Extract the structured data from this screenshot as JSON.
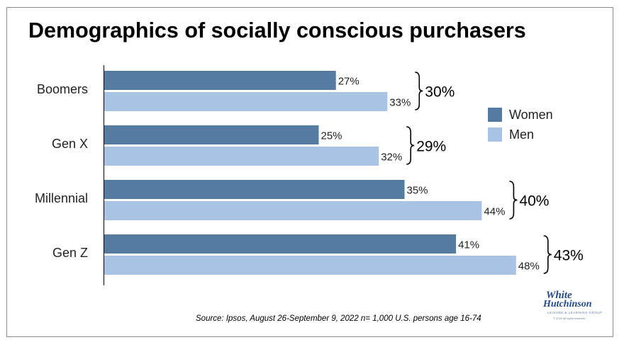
{
  "title": "Demographics of socially conscious purchasers",
  "source": "Source: Ipsos, August 26-September 9, 2022 n= 1,000 U.S. persons age 16-74",
  "logo": {
    "line1": "White",
    "line2": "Hutchinson",
    "line3": "LEISURE & LEARNING GROUP",
    "line4": "© 2022 all rights reserved"
  },
  "colors": {
    "women": "#557ba0",
    "men": "#a9c3e5"
  },
  "chart_data": {
    "type": "bar",
    "orientation": "horizontal",
    "categories": [
      "Boomers",
      "Gen X",
      "Millennial",
      "Gen Z"
    ],
    "series": [
      {
        "name": "Women",
        "values": [
          27,
          25,
          35,
          41
        ],
        "labels": [
          "27%",
          "25%",
          "35%",
          "41%"
        ]
      },
      {
        "name": "Men",
        "values": [
          33,
          32,
          44,
          48
        ],
        "labels": [
          "33%",
          "32%",
          "44%",
          "48%"
        ]
      }
    ],
    "totals": [
      30,
      29,
      40,
      43
    ],
    "total_labels": [
      "30%",
      "29%",
      "40%",
      "43%"
    ],
    "xlim": [
      0,
      60
    ],
    "grid": false,
    "legend": "right"
  }
}
